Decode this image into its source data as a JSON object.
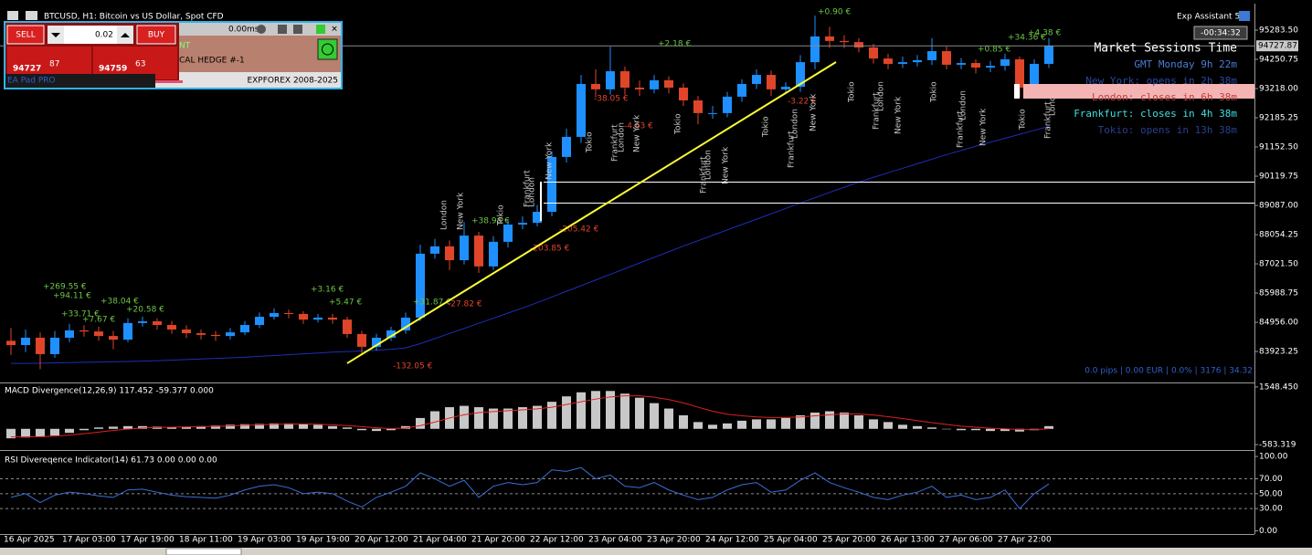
{
  "chart_data": [
    {
      "type": "candlestick",
      "title": "BTCUSD, H1:  Bitcoin vs US Dollar, Spot CFD",
      "up_color": "#1e90ff",
      "down_color": "#e0452a",
      "categories": [
        "16 Apr 2025",
        null,
        null,
        null,
        "17 Apr 03:00",
        null,
        null,
        null,
        "17 Apr 19:00",
        null,
        null,
        null,
        "18 Apr 11:00",
        null,
        null,
        null,
        "19 Apr 03:00",
        null,
        null,
        null,
        "19 Apr 19:00",
        null,
        null,
        null,
        "20 Apr 12:00",
        null,
        null,
        null,
        "21 Apr 04:00",
        null,
        null,
        null,
        "21 Apr 20:00",
        null,
        null,
        null,
        "22 Apr 12:00",
        null,
        null,
        null,
        "23 Apr 04:00",
        null,
        null,
        null,
        "23 Apr 20:00",
        null,
        null,
        null,
        "24 Apr 12:00",
        null,
        null,
        null,
        "25 Apr 04:00",
        null,
        null,
        null,
        "25 Apr 20:00",
        null,
        null,
        null,
        "26 Apr 13:00",
        null,
        null,
        null,
        "27 Apr 06:00",
        null,
        null,
        null,
        "27 Apr 22:00",
        null,
        null,
        null
      ],
      "open": [
        84300,
        84150,
        84410,
        83830,
        84410,
        84670,
        84630,
        84470,
        84340,
        84930,
        84990,
        84860,
        84700,
        84570,
        84510,
        84470,
        84600,
        84860,
        85150,
        85280,
        85250,
        85050,
        85120,
        85050,
        84540,
        84090,
        84410,
        84670,
        85120,
        87380,
        87640,
        87150,
        88020,
        86930,
        87800,
        88410,
        88470,
        88860,
        90800,
        91510,
        93380,
        93190,
        93830,
        93250,
        93190,
        93510,
        93250,
        92800,
        92350,
        92350,
        92930,
        93380,
        93700,
        93190,
        93280,
        94150,
        95060,
        94900,
        94860,
        94670,
        94280,
        94090,
        94150,
        94220,
        94540,
        94060,
        94120,
        93960,
        94020,
        94250,
        93250,
        94090
      ],
      "high": [
        84750,
        84700,
        84600,
        84650,
        84900,
        84850,
        84800,
        84650,
        85100,
        85150,
        85100,
        85000,
        84850,
        84700,
        84650,
        84750,
        85000,
        85300,
        85450,
        85400,
        85350,
        85250,
        85250,
        85150,
        84650,
        84550,
        84800,
        85300,
        87700,
        87900,
        87850,
        88500,
        88150,
        88000,
        88600,
        88700,
        89100,
        91000,
        91800,
        93700,
        93900,
        94700,
        94000,
        93500,
        93700,
        93650,
        93400,
        92950,
        92600,
        93100,
        93550,
        93900,
        93850,
        93450,
        94400,
        95800,
        95400,
        95100,
        95000,
        94800,
        94450,
        94350,
        94400,
        95000,
        94700,
        94300,
        94250,
        94200,
        94450,
        94350,
        94250,
        95000
      ],
      "low": [
        83800,
        83900,
        83300,
        83700,
        84250,
        84450,
        84300,
        84000,
        84250,
        84800,
        84700,
        84550,
        84400,
        84350,
        84300,
        84350,
        84500,
        84750,
        85050,
        85100,
        84900,
        84950,
        84900,
        84400,
        83850,
        83950,
        84300,
        84550,
        85000,
        87200,
        86800,
        87000,
        86700,
        86800,
        87600,
        88250,
        88350,
        88700,
        90600,
        91300,
        92900,
        93000,
        93000,
        92950,
        93050,
        93050,
        92600,
        91950,
        92150,
        92200,
        92750,
        93200,
        92950,
        93050,
        93100,
        93900,
        94650,
        94650,
        94500,
        94100,
        93900,
        93950,
        94000,
        94050,
        93900,
        93900,
        93750,
        93800,
        93850,
        92900,
        93100,
        93950
      ],
      "close": [
        84150,
        84410,
        83830,
        84410,
        84670,
        84630,
        84470,
        84340,
        84930,
        84990,
        84860,
        84700,
        84570,
        84510,
        84470,
        84600,
        84860,
        85150,
        85280,
        85250,
        85050,
        85120,
        85050,
        84540,
        84090,
        84410,
        84670,
        85120,
        87380,
        87640,
        87150,
        88020,
        86930,
        87800,
        88410,
        88470,
        88860,
        90800,
        91510,
        93380,
        93190,
        93830,
        93250,
        93190,
        93510,
        93250,
        92800,
        92350,
        92350,
        92930,
        93380,
        93700,
        93190,
        93280,
        94150,
        95060,
        94900,
        94860,
        94670,
        94280,
        94090,
        94150,
        94220,
        94540,
        94060,
        94120,
        93960,
        94020,
        94250,
        93250,
        94090,
        94730
      ],
      "overlays": [
        {
          "color": "#1c2fb8",
          "values": [
            83500,
            83500,
            83510,
            83520,
            83530,
            83540,
            83550,
            83560,
            83570,
            83580,
            83600,
            83620,
            83640,
            83660,
            83680,
            83700,
            83720,
            83750,
            83780,
            83810,
            83840,
            83870,
            83900,
            83920,
            83940,
            83970,
            84000,
            84050,
            84200,
            84380,
            84560,
            84740,
            84920,
            85100,
            85280,
            85460,
            85650,
            85850,
            86050,
            86250,
            86450,
            86650,
            86850,
            87050,
            87250,
            87450,
            87650,
            87840,
            88030,
            88220,
            88410,
            88600,
            88790,
            88980,
            89170,
            89360,
            89550,
            89730,
            89910,
            90080,
            90240,
            90400,
            90560,
            90720,
            90880,
            91030,
            91180,
            91320,
            91460,
            91600,
            91740,
            91880
          ]
        }
      ],
      "last_price": 94727.87,
      "ylim": [
        82860,
        96090
      ],
      "yticks": [
        {
          "value": 95283.5,
          "label": "95283.50"
        },
        94250.75,
        {
          "value": 93218,
          "label": "93218.00"
        },
        92185.25,
        {
          "value": 91152.5,
          "label": "91152.50"
        },
        90119.75,
        {
          "value": 89087,
          "label": "89087.00"
        },
        88054.25,
        {
          "value": 87021.5,
          "label": "87021.50"
        },
        85988.75,
        {
          "value": 84956,
          "label": "84956.00"
        },
        83923.25
      ],
      "annotations": [
        {
          "text": "+269.55 €",
          "color": "#6cc644"
        },
        {
          "text": "+94.11 €",
          "color": "#6cc644"
        },
        {
          "text": "+38.04 €",
          "color": "#6cc644"
        },
        {
          "text": "+20.58 €",
          "color": "#6cc644"
        },
        {
          "text": "+33.71 €",
          "color": "#6cc644"
        },
        {
          "text": "+7.67 €",
          "color": "#6cc644"
        },
        {
          "text": "+3.16 €",
          "color": "#6cc644"
        },
        {
          "text": "+5.47 €",
          "color": "#6cc644"
        },
        {
          "text": "-132.05 €",
          "color": "#e0452a"
        },
        {
          "text": "+31.87 €",
          "color": "#6cc644"
        },
        {
          "text": "-27.82 €",
          "color": "#e0452a"
        },
        {
          "text": "+38.98 €",
          "color": "#6cc644"
        },
        {
          "text": "-203.85 €",
          "color": "#e0452a"
        },
        {
          "text": "-205.42 €",
          "color": "#e0452a"
        },
        {
          "text": "-38.05 €",
          "color": "#e0452a"
        },
        {
          "text": "-4.63 €",
          "color": "#e0452a"
        },
        {
          "text": "+2.18 €",
          "color": "#6cc644"
        },
        {
          "text": "-3.22 €",
          "color": "#e0452a"
        },
        {
          "text": "+0.90 €",
          "color": "#6cc644"
        },
        {
          "text": "+0.85 €",
          "color": "#6cc644"
        },
        {
          "text": "+34.36 €",
          "color": "#6cc644"
        },
        {
          "text": "+4.38 €",
          "color": "#6cc644"
        }
      ],
      "session_markers": [
        "London",
        "New York",
        "Tokio",
        "Frankfurt",
        "London",
        "New York",
        "Tokio",
        "Frankfurt",
        "London",
        "New York",
        "Tokio",
        "Frankfurt",
        "London",
        "New York",
        "Tokio",
        "Frankfurt",
        "London",
        "New York",
        "Tokio",
        "Frankfurt",
        "London",
        "New York",
        "Tokio",
        "Frankfurt",
        "London",
        "New York",
        "Tokio",
        "Frankfurt",
        "London"
      ]
    },
    {
      "type": "bar",
      "title": "MACD Divergence(12,26,9) 117.452 -59.377 0.000",
      "color": "#c8c8c8",
      "values": [
        -350,
        -320,
        -300,
        -250,
        -150,
        -50,
        50,
        80,
        100,
        100,
        80,
        60,
        80,
        100,
        120,
        150,
        170,
        180,
        200,
        200,
        180,
        150,
        100,
        50,
        -50,
        -80,
        -50,
        100,
        400,
        650,
        800,
        850,
        800,
        750,
        750,
        800,
        850,
        1000,
        1200,
        1350,
        1400,
        1400,
        1300,
        1150,
        950,
        750,
        500,
        250,
        150,
        200,
        300,
        350,
        350,
        400,
        500,
        600,
        650,
        600,
        500,
        350,
        250,
        150,
        100,
        50,
        0,
        -50,
        -50,
        -80,
        -80,
        -100,
        -50,
        100
      ],
      "signal": {
        "color": "#e02020",
        "values": [
          -300,
          -300,
          -290,
          -270,
          -230,
          -180,
          -120,
          -60,
          -10,
          30,
          50,
          60,
          70,
          80,
          90,
          110,
          130,
          150,
          165,
          175,
          178,
          170,
          150,
          120,
          80,
          40,
          10,
          30,
          120,
          250,
          400,
          520,
          600,
          640,
          670,
          700,
          740,
          800,
          900,
          1000,
          1100,
          1180,
          1220,
          1220,
          1170,
          1080,
          960,
          800,
          650,
          540,
          480,
          440,
          420,
          420,
          440,
          480,
          520,
          550,
          550,
          510,
          450,
          380,
          300,
          230,
          160,
          100,
          60,
          20,
          0,
          -30,
          -30,
          0
        ]
      },
      "ylim": [
        -750,
        1680
      ],
      "yticks": [
        {
          "value": 1548.45,
          "label": "1548.450"
        },
        -583.319
      ]
    },
    {
      "type": "line",
      "title": "RSI Divereqence Indicator(14) 61.73 0.00 0.00 0.00",
      "color": "#3a6fd8",
      "values": [
        45,
        50,
        38,
        48,
        52,
        50,
        47,
        45,
        55,
        56,
        52,
        48,
        46,
        45,
        44,
        48,
        55,
        60,
        62,
        58,
        50,
        52,
        50,
        40,
        32,
        45,
        52,
        60,
        78,
        70,
        60,
        68,
        45,
        60,
        65,
        62,
        65,
        82,
        80,
        85,
        70,
        75,
        60,
        58,
        65,
        55,
        48,
        42,
        45,
        55,
        62,
        65,
        52,
        55,
        68,
        78,
        65,
        58,
        52,
        45,
        42,
        48,
        52,
        60,
        45,
        48,
        42,
        45,
        55,
        30,
        50,
        63
      ],
      "levels": [
        70,
        50,
        30
      ],
      "ylim": [
        -3,
        105
      ],
      "yticks": [
        {
          "value": 100,
          "label": "100.00"
        },
        {
          "value": 70,
          "label": "70.00"
        },
        {
          "value": 50,
          "label": "50.00"
        },
        {
          "value": 30,
          "label": "30.00"
        },
        {
          "value": 0,
          "label": "0.00"
        }
      ]
    }
  ],
  "trade_panel": {
    "sell": "SELL",
    "buy": "BUY",
    "lot": "0.02",
    "bid_main": "94727",
    "bid_pips": "87",
    "ask_main": "94759",
    "ask_pips": "63",
    "latency": "0.00ms",
    "product_a": "NT",
    "hedge": "CAL HEDGE  #-1",
    "brand": "EA Pad PRO",
    "copyright": "EXPFOREX 2008-2025"
  },
  "assistant": {
    "name": "Exp Assistant 5",
    "timer": "-00:34:32"
  },
  "sessions": {
    "title": "Market Sessions Time",
    "gmt": "GMT Monday 9h 22m",
    "new_york": "New York: opens in 2h 38m",
    "london": "London: closes in 6h 38m",
    "frankfurt": "Frankfurt: closes in 4h 38m",
    "tokio": "Tokio: opens in 13h 38m"
  },
  "status": "0.0 pips | 0.00 EUR | 0.0% | 3176 | 34.32"
}
